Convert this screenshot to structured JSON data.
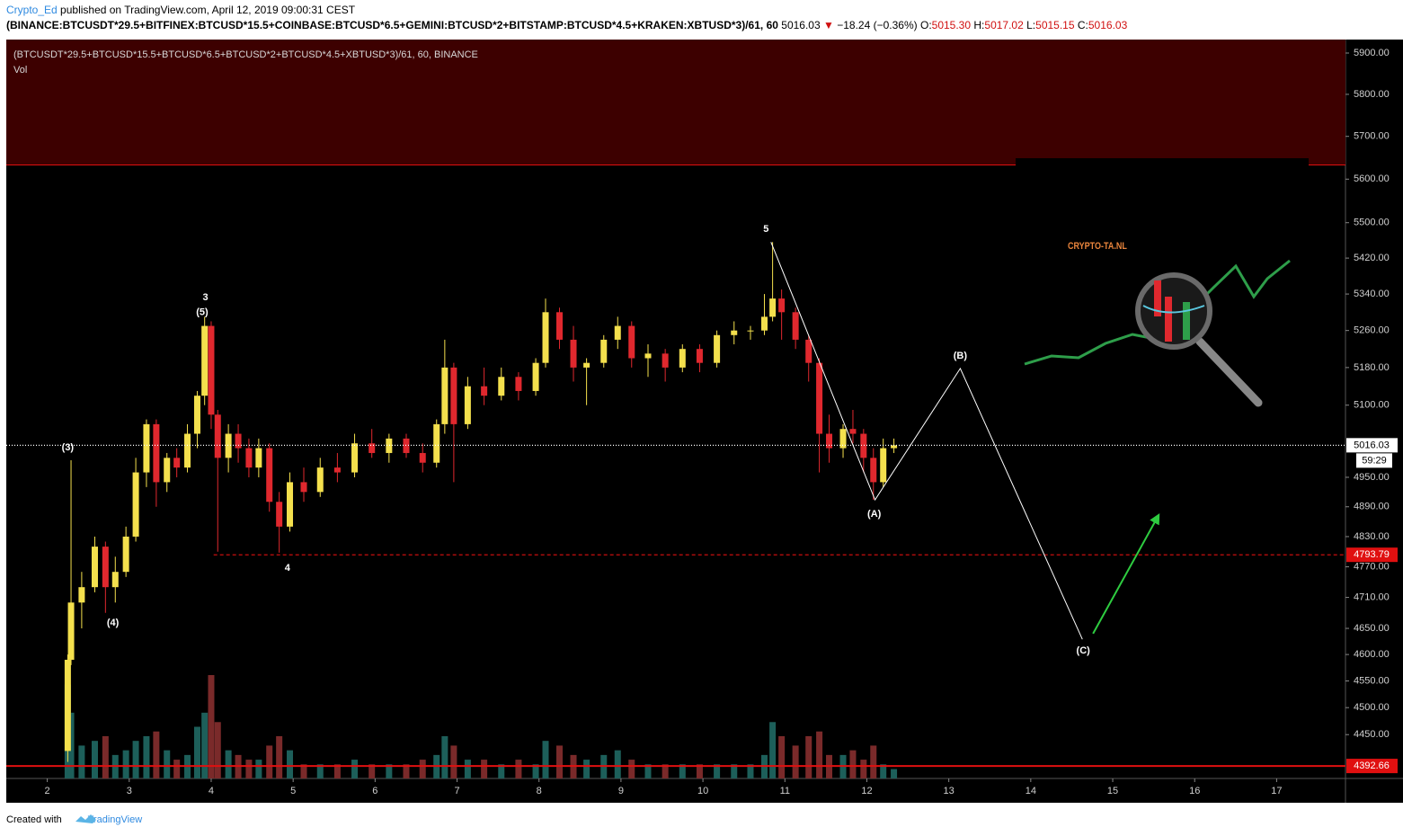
{
  "header": {
    "author": "Crypto_Ed",
    "published": "published on TradingView.com, April 12, 2019 09:00:31 CEST",
    "symbol": "(BINANCE:BTCUSDT*29.5+BITFINEX:BTCUSD*15.5+COINBASE:BTCUSD*6.5+GEMINI:BTCUSD*2+BITSTAMP:BTCUSD*4.5+KRAKEN:XBTUSD*3)/61, 60",
    "last": "5016.03",
    "arrow": "▼",
    "change": "−18.24 (−0.36%)",
    "ohlc": [
      {
        "label": "O:",
        "value": "5015.30"
      },
      {
        "label": "H:",
        "value": "5017.02"
      },
      {
        "label": "L:",
        "value": "5015.15"
      },
      {
        "label": "C:",
        "value": "5016.03"
      }
    ]
  },
  "footer": {
    "created": "Created with",
    "brand": "TradingView"
  },
  "logo": "CRYPTO-TA.NL",
  "chart_data": {
    "type": "candlestick",
    "legend_title": "(BTCUSDT*29.5+BTCUSD*15.5+BTCUSD*6.5+BTCUSD*2+BTCUSD*4.5+XBTUSD*3)/61, 60, BINANCE",
    "indicator": "Vol",
    "log_scale": true,
    "grid": false,
    "up_color": "#f4e04d",
    "down_color": "#e0282e",
    "volume_up_color": "#1d5f5a",
    "volume_down_color": "#7a2a2a",
    "x": [
      2.25,
      2.29,
      2.42,
      2.58,
      2.71,
      2.83,
      2.96,
      3.08,
      3.21,
      3.33,
      3.46,
      3.58,
      3.71,
      3.83,
      3.92,
      4.0,
      4.08,
      4.21,
      4.33,
      4.46,
      4.58,
      4.71,
      4.83,
      4.96,
      5.13,
      5.33,
      5.54,
      5.75,
      5.96,
      6.17,
      6.38,
      6.58,
      6.75,
      6.85,
      6.96,
      7.13,
      7.33,
      7.54,
      7.75,
      7.96,
      8.08,
      8.25,
      8.42,
      8.58,
      8.79,
      8.96,
      9.13,
      9.33,
      9.54,
      9.75,
      9.96,
      10.17,
      10.38,
      10.58,
      10.75,
      10.85,
      10.96,
      11.13,
      11.29,
      11.42,
      11.54,
      11.71,
      11.83,
      11.96,
      12.08,
      12.2,
      12.33
    ],
    "open": [
      4420,
      4590,
      4700,
      4730,
      4810,
      4730,
      4760,
      4830,
      4960,
      5060,
      4940,
      4990,
      4970,
      5040,
      5120,
      5270,
      5080,
      4990,
      5040,
      5010,
      4970,
      5010,
      4900,
      4850,
      4940,
      4920,
      4970,
      4960,
      5020,
      5000,
      5030,
      5000,
      4980,
      5060,
      5180,
      5060,
      5140,
      5120,
      5160,
      5130,
      5190,
      5300,
      5240,
      5180,
      5190,
      5240,
      5270,
      5200,
      5210,
      5180,
      5220,
      5190,
      5250,
      5260,
      5260,
      5290,
      5330,
      5300,
      5240,
      5190,
      5040,
      5010,
      5050,
      5040,
      4990,
      4940,
      5010
    ],
    "high": [
      4600,
      4985,
      4760,
      4830,
      4820,
      4790,
      4850,
      4990,
      5070,
      5070,
      5000,
      5010,
      5060,
      5130,
      5290,
      5280,
      5090,
      5060,
      5060,
      5030,
      5030,
      5020,
      4920,
      4960,
      4970,
      4990,
      5000,
      5040,
      5050,
      5040,
      5040,
      5020,
      5070,
      5240,
      5190,
      5160,
      5180,
      5180,
      5170,
      5200,
      5330,
      5310,
      5270,
      5200,
      5250,
      5290,
      5280,
      5230,
      5220,
      5230,
      5230,
      5260,
      5280,
      5270,
      5340,
      5456,
      5350,
      5310,
      5250,
      5200,
      5080,
      5060,
      5090,
      5050,
      5010,
      5030,
      5030
    ],
    "low": [
      4400,
      4580,
      4650,
      4720,
      4680,
      4700,
      4750,
      4820,
      4930,
      4890,
      4920,
      4950,
      4960,
      5010,
      5100,
      5050,
      4800,
      4960,
      4980,
      4950,
      4950,
      4880,
      4798,
      4840,
      4900,
      4910,
      4940,
      4950,
      4990,
      4980,
      4990,
      4960,
      4970,
      5040,
      4940,
      5050,
      5100,
      5110,
      5110,
      5120,
      5180,
      5220,
      5150,
      5100,
      5180,
      5220,
      5180,
      5160,
      5150,
      5170,
      5170,
      5180,
      5230,
      5240,
      5250,
      5280,
      5240,
      5220,
      5150,
      4960,
      4980,
      4990,
      5020,
      4960,
      4904,
      4930,
      5000
    ],
    "close": [
      4590,
      4700,
      4730,
      4810,
      4730,
      4760,
      4830,
      4960,
      5060,
      4940,
      4990,
      4970,
      5040,
      5120,
      5270,
      5080,
      4990,
      5040,
      5010,
      4970,
      5010,
      4900,
      4850,
      4940,
      4920,
      4970,
      4960,
      5020,
      5000,
      5030,
      5000,
      4980,
      5060,
      5180,
      5060,
      5140,
      5120,
      5160,
      5130,
      5190,
      5300,
      5240,
      5180,
      5190,
      5240,
      5270,
      5200,
      5210,
      5180,
      5220,
      5190,
      5250,
      5260,
      5260,
      5290,
      5330,
      5300,
      5240,
      5190,
      5040,
      5010,
      5050,
      5040,
      4990,
      4940,
      5010,
      5016.03
    ],
    "volume": [
      100,
      70,
      35,
      40,
      45,
      25,
      30,
      40,
      45,
      50,
      30,
      20,
      25,
      55,
      70,
      110,
      60,
      30,
      25,
      20,
      20,
      35,
      45,
      30,
      15,
      15,
      15,
      20,
      15,
      15,
      15,
      20,
      25,
      45,
      35,
      20,
      20,
      15,
      20,
      15,
      40,
      35,
      25,
      20,
      25,
      30,
      20,
      15,
      15,
      15,
      15,
      15,
      15,
      15,
      25,
      60,
      45,
      35,
      45,
      50,
      25,
      25,
      30,
      20,
      35,
      15,
      10
    ],
    "xlim": [
      1.5,
      17.84
    ],
    "xticks": [
      2,
      3,
      4,
      5,
      6,
      7,
      8,
      9,
      10,
      11,
      12,
      13,
      14,
      15,
      16,
      17
    ],
    "ylim": [
      4370,
      5933
    ],
    "yticks": [
      {
        "value": 5900,
        "label": "5900.00"
      },
      {
        "value": 5800,
        "label": "5800.00"
      },
      {
        "value": 5700,
        "label": "5700.00"
      },
      {
        "value": 5600,
        "label": "5600.00"
      },
      {
        "value": 5500,
        "label": "5500.00"
      },
      {
        "value": 5420,
        "label": "5420.00"
      },
      {
        "value": 5340,
        "label": "5340.00"
      },
      {
        "value": 5260,
        "label": "5260.00"
      },
      {
        "value": 5180,
        "label": "5180.00"
      },
      {
        "value": 5100,
        "label": "5100.00"
      },
      {
        "value": 4950,
        "label": "4950.00"
      },
      {
        "value": 4890,
        "label": "4890.00"
      },
      {
        "value": 4830,
        "label": "4830.00"
      },
      {
        "value": 4770,
        "label": "4770.00"
      },
      {
        "value": 4710,
        "label": "4710.00"
      },
      {
        "value": 4650,
        "label": "4650.00"
      },
      {
        "value": 4600,
        "label": "4600.00"
      },
      {
        "value": 4550,
        "label": "4550.00"
      },
      {
        "value": 4500,
        "label": "4500.00"
      },
      {
        "value": 4450,
        "label": "4450.00"
      }
    ],
    "zone": {
      "from": 5633,
      "to": 5933,
      "color": "#3d0000",
      "edge_color": "#e01010"
    },
    "price_lines": [
      {
        "value": 5016.03,
        "color": "#ffffff",
        "style": "dotted",
        "countdown": "59:29"
      },
      {
        "value": 4793.79,
        "color": "#e01010",
        "style": "dashed",
        "from_x": 4.03
      },
      {
        "value": 4392.66,
        "color": "#e01010",
        "style": "solid"
      }
    ],
    "annotations": [
      {
        "text": "(3)",
        "x": 2.25,
        "y": 5011
      },
      {
        "text": "(4)",
        "x": 2.8,
        "y": 4660
      },
      {
        "text": "3",
        "x": 3.93,
        "y": 5332
      },
      {
        "text": "(5)",
        "x": 3.89,
        "y": 5299
      },
      {
        "text": "4",
        "x": 4.93,
        "y": 4767
      },
      {
        "text": "5",
        "x": 10.77,
        "y": 5485
      },
      {
        "text": "(A)",
        "x": 12.09,
        "y": 4875
      },
      {
        "text": "(B)",
        "x": 13.14,
        "y": 5205
      },
      {
        "text": "(C)",
        "x": 14.64,
        "y": 4607
      }
    ],
    "projection": {
      "x": [
        10.83,
        12.1,
        13.14,
        14.63
      ],
      "y": [
        5456,
        4904,
        5178,
        4629
      ],
      "color": "#ffffff"
    },
    "arrow": {
      "x": [
        14.76,
        15.56
      ],
      "y": [
        4640,
        4873
      ],
      "color": "#2ecc40"
    }
  }
}
